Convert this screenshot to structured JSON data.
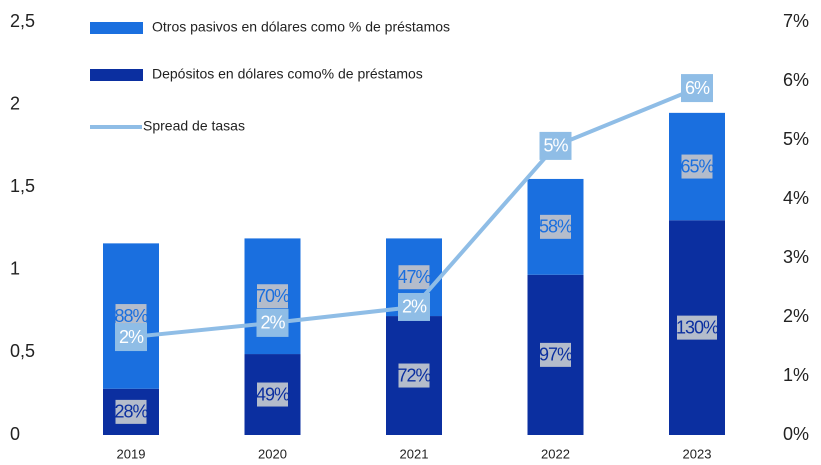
{
  "chart_data": {
    "type": "stacked_bar_line",
    "categories": [
      "2019",
      "2020",
      "2021",
      "2022",
      "2023"
    ],
    "series": [
      {
        "name": "Depósitos en dólares como% de préstamos",
        "color": "#0b2fa0",
        "values": [
          0.28,
          0.49,
          0.72,
          0.97,
          1.3
        ],
        "value_labels": [
          "28%",
          "49%",
          "72%",
          "97%",
          "130%"
        ]
      },
      {
        "name": "Otros pasivos en dólares como % de préstamos",
        "color": "#1a6fdf",
        "values": [
          0.88,
          0.7,
          0.47,
          0.58,
          0.65
        ],
        "value_labels": [
          "88%",
          "70%",
          "47%",
          "58%",
          "65%"
        ]
      },
      {
        "name": "Spread de tasas",
        "color": "#8fbde6",
        "axis": "y2",
        "values": [
          1.66,
          1.9,
          2.17,
          4.9,
          5.88
        ],
        "value_labels": [
          "2%",
          "2%",
          "2%",
          "5%",
          "6%"
        ]
      }
    ],
    "ylim": [
      0,
      2.5
    ],
    "yticks": [
      0,
      {
        "value": 0.5,
        "label": "0,5"
      },
      1,
      {
        "value": 1.5,
        "label": "1,5"
      },
      2,
      {
        "value": 2.5,
        "label": "2,5"
      }
    ],
    "y2lim": [
      0,
      7
    ],
    "y2ticks": [
      {
        "value": 0,
        "label": "0%"
      },
      {
        "value": 1,
        "label": "1%"
      },
      {
        "value": 2,
        "label": "2%"
      },
      {
        "value": 3,
        "label": "3%"
      },
      {
        "value": 4,
        "label": "4%"
      },
      {
        "value": 5,
        "label": "5%"
      },
      {
        "value": 6,
        "label": "6%"
      },
      {
        "value": 7,
        "label": "7%"
      }
    ],
    "grid": false
  }
}
